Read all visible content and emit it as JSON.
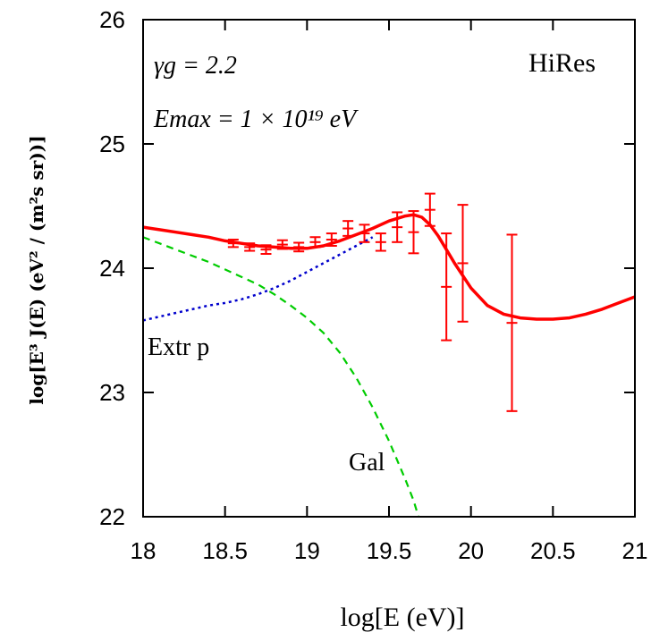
{
  "chart_data": {
    "type": "line",
    "xlabel": "log[E (eV)]",
    "ylabel": "log[E³ J(E)  (eV² / (m²s sr))]",
    "xlim": [
      18,
      21
    ],
    "ylim": [
      22,
      26
    ],
    "xticks": [
      "18",
      "18.5",
      "19",
      "19.5",
      "20",
      "20.5",
      "21"
    ],
    "yticks": [
      "22",
      "23",
      "24",
      "25",
      "26"
    ],
    "grid": false,
    "annotations": {
      "gamma": "γg = 2.2",
      "emax": "Emax = 1 × 10¹⁹ eV",
      "experiment": "HiRes",
      "extr_label": "Extr p",
      "gal_label": "Gal"
    },
    "colors": {
      "total": "#ff0000",
      "extragalactic": "#0000cc",
      "galactic": "#00cc00",
      "data": "#ff0000"
    },
    "series": [
      {
        "style": "solid",
        "x": [
          18.0,
          18.1,
          18.2,
          18.3,
          18.4,
          18.5,
          18.6,
          18.7,
          18.8,
          18.9,
          19.0,
          19.1,
          19.2,
          19.3,
          19.4,
          19.5,
          19.6,
          19.65,
          19.7,
          19.75,
          19.8,
          19.85,
          19.9,
          20.0,
          20.1,
          20.2,
          20.3,
          20.4,
          20.5,
          20.6,
          20.7,
          20.8,
          20.9,
          21.0
        ],
        "y": [
          24.33,
          24.31,
          24.29,
          24.27,
          24.25,
          24.22,
          24.2,
          24.18,
          24.17,
          24.16,
          24.16,
          24.18,
          24.22,
          24.27,
          24.32,
          24.38,
          24.42,
          24.43,
          24.41,
          24.35,
          24.26,
          24.15,
          24.04,
          23.84,
          23.7,
          23.63,
          23.6,
          23.59,
          23.59,
          23.6,
          23.63,
          23.67,
          23.72,
          23.77
        ]
      },
      {
        "style": "dotted",
        "x": [
          18.0,
          18.1,
          18.2,
          18.3,
          18.4,
          18.5,
          18.6,
          18.7,
          18.8,
          18.9,
          19.0,
          19.1,
          19.2,
          19.3,
          19.4
        ],
        "y": [
          23.58,
          23.61,
          23.64,
          23.67,
          23.7,
          23.72,
          23.75,
          23.79,
          23.84,
          23.9,
          23.97,
          24.04,
          24.11,
          24.18,
          24.25
        ]
      },
      {
        "style": "dashed",
        "x": [
          18.0,
          18.1,
          18.2,
          18.3,
          18.4,
          18.5,
          18.6,
          18.7,
          18.8,
          18.9,
          19.0,
          19.1,
          19.2,
          19.3,
          19.4,
          19.5,
          19.6,
          19.65,
          19.68
        ],
        "y": [
          24.25,
          24.2,
          24.15,
          24.1,
          24.05,
          23.99,
          23.93,
          23.87,
          23.79,
          23.7,
          23.6,
          23.48,
          23.32,
          23.12,
          22.88,
          22.61,
          22.3,
          22.13,
          22.0
        ]
      }
    ],
    "points": {
      "x": [
        18.55,
        18.65,
        18.75,
        18.85,
        18.95,
        19.05,
        19.15,
        19.25,
        19.35,
        19.45,
        19.55,
        19.65,
        19.75,
        19.85,
        19.95,
        20.25
      ],
      "y": [
        24.2,
        24.17,
        24.15,
        24.19,
        24.17,
        24.21,
        24.23,
        24.32,
        24.28,
        24.21,
        24.33,
        24.29,
        24.47,
        23.85,
        24.04,
        23.56
      ],
      "err": [
        0.03,
        0.03,
        0.035,
        0.035,
        0.035,
        0.04,
        0.05,
        0.06,
        0.07,
        0.07,
        0.12,
        0.17,
        0.13,
        0.43,
        0.47,
        0.71
      ]
    }
  }
}
